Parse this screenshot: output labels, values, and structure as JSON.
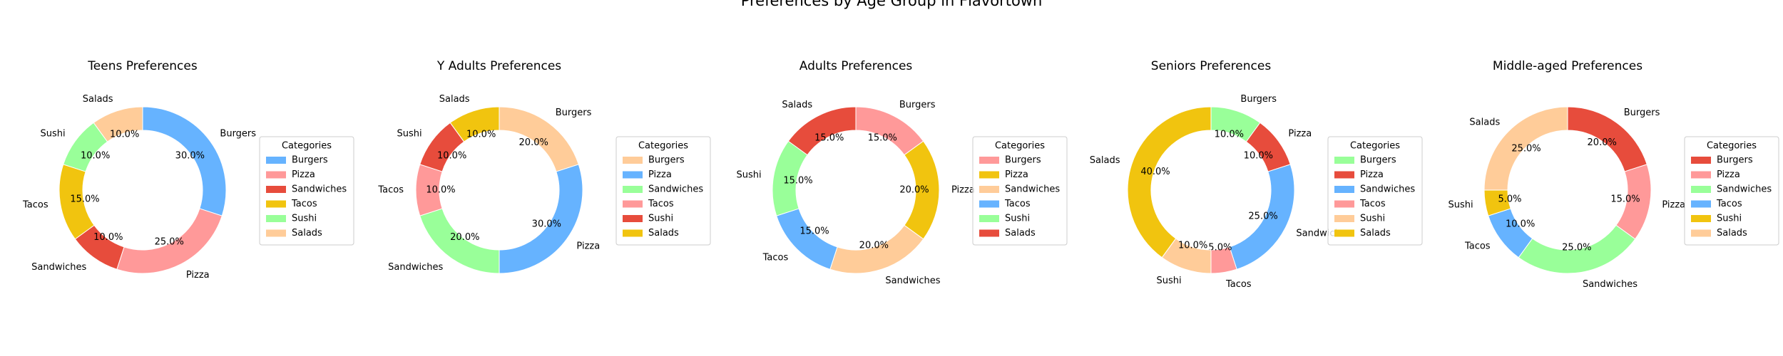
{
  "figure": {
    "suptitle": "Preferences by Age Group in Flavortown"
  },
  "legend_title": "Categories",
  "chart_data": [
    {
      "type": "pie",
      "donut": true,
      "title": "Teens Preferences",
      "legend_placement": "right",
      "categories": [
        "Burgers",
        "Pizza",
        "Sandwiches",
        "Tacos",
        "Sushi",
        "Salads"
      ],
      "values": [
        30,
        25,
        10,
        15,
        10,
        10
      ],
      "colors": [
        "#66b3ff",
        "#ff9999",
        "#e74c3c",
        "#f1c40f",
        "#99ff99",
        "#ffcc99"
      ],
      "value_labels": [
        "30.0%",
        "25.0%",
        "10.0%",
        "15.0%",
        "10.0%",
        "10.0%"
      ]
    },
    {
      "type": "pie",
      "donut": true,
      "title": "Y Adults Preferences",
      "legend_placement": "right",
      "categories": [
        "Burgers",
        "Pizza",
        "Sandwiches",
        "Tacos",
        "Sushi",
        "Salads"
      ],
      "values": [
        20,
        30,
        20,
        10,
        10,
        10
      ],
      "colors": [
        "#ffcc99",
        "#66b3ff",
        "#99ff99",
        "#ff9999",
        "#e74c3c",
        "#f1c40f"
      ],
      "value_labels": [
        "20.0%",
        "30.0%",
        "20.0%",
        "10.0%",
        "10.0%",
        "10.0%"
      ]
    },
    {
      "type": "pie",
      "donut": true,
      "title": "Adults Preferences",
      "legend_placement": "right",
      "categories": [
        "Burgers",
        "Pizza",
        "Sandwiches",
        "Tacos",
        "Sushi",
        "Salads"
      ],
      "values": [
        15,
        20,
        20,
        15,
        15,
        15
      ],
      "colors": [
        "#ff9999",
        "#f1c40f",
        "#ffcc99",
        "#66b3ff",
        "#99ff99",
        "#e74c3c"
      ],
      "value_labels": [
        "15.0%",
        "20.0%",
        "20.0%",
        "15.0%",
        "15.0%",
        "15.0%"
      ]
    },
    {
      "type": "pie",
      "donut": true,
      "title": "Seniors Preferences",
      "legend_placement": "right",
      "categories": [
        "Burgers",
        "Pizza",
        "Sandwiches",
        "Tacos",
        "Sushi",
        "Salads"
      ],
      "values": [
        10,
        10,
        25,
        5,
        10,
        40
      ],
      "colors": [
        "#99ff99",
        "#e74c3c",
        "#66b3ff",
        "#ff9999",
        "#ffcc99",
        "#f1c40f"
      ],
      "value_labels": [
        "10.0%",
        "10.0%",
        "25.0%",
        "5.0%",
        "10.0%",
        "40.0%"
      ]
    },
    {
      "type": "pie",
      "donut": true,
      "title": "Middle-aged Preferences",
      "legend_placement": "right",
      "categories": [
        "Burgers",
        "Pizza",
        "Sandwiches",
        "Tacos",
        "Sushi",
        "Salads"
      ],
      "values": [
        20,
        15,
        25,
        10,
        5,
        25
      ],
      "colors": [
        "#e74c3c",
        "#ff9999",
        "#99ff99",
        "#66b3ff",
        "#f1c40f",
        "#ffcc99"
      ],
      "value_labels": [
        "20.0%",
        "15.0%",
        "25.0%",
        "10.0%",
        "5.0%",
        "25.0%"
      ]
    }
  ]
}
